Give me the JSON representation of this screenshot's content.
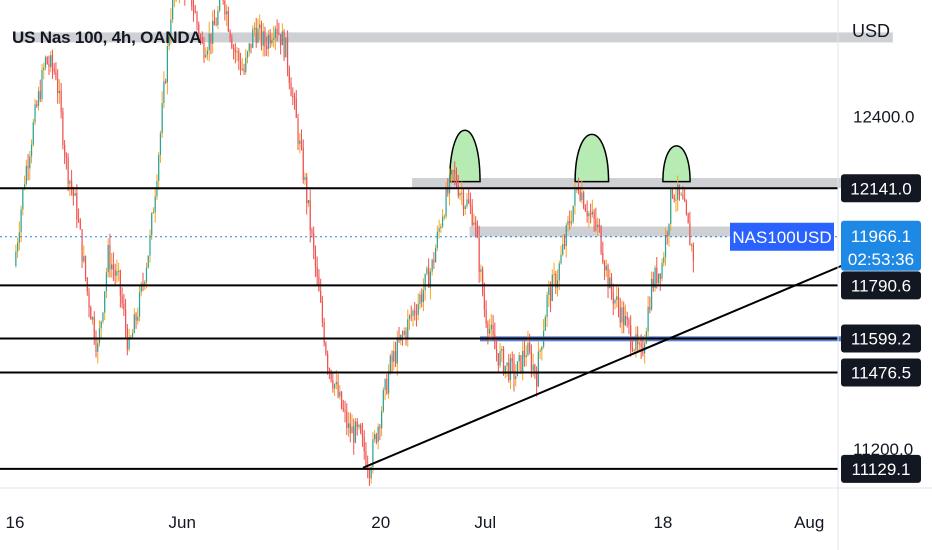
{
  "header": {
    "title": "US Nas 100, 4h, OANDA",
    "currency": "USD"
  },
  "colors": {
    "up": "#26a69a",
    "down": "#ef5350",
    "wick_up": "#f5a623",
    "level_line": "#000000",
    "zone": "#cfd0d4",
    "blue_zone": "#3f6cc8",
    "hump_fill": "#b6ecb4",
    "symbol_tag": "#2962ff",
    "price_tag": "#1e88e5"
  },
  "symbol_tag": {
    "label": "NAS100USD",
    "price": "11966.1",
    "countdown": "02:53:36"
  },
  "chart_data": {
    "type": "candlestick",
    "title": "US Nas 100, 4h, OANDA",
    "ylim": [
      11060,
      12820
    ],
    "y_tick_labels": [
      {
        "value": 12400,
        "label": "12400.0"
      },
      {
        "value": 11200,
        "label": "11200.0"
      }
    ],
    "x_tick_labels": [
      {
        "label": "16",
        "day": 0
      },
      {
        "label": "Jun",
        "day": 16
      },
      {
        "label": "20",
        "day": 35
      },
      {
        "label": "Jul",
        "day": 45
      },
      {
        "label": "18",
        "day": 62
      },
      {
        "label": "Aug",
        "day": 76
      }
    ],
    "levels": [
      {
        "value": 12141.0,
        "label": "12141.0"
      },
      {
        "value": 11790.6,
        "label": "11790.6"
      },
      {
        "value": 11599.2,
        "label": "11599.2"
      },
      {
        "value": 11476.5,
        "label": "11476.5"
      },
      {
        "value": 11129.1,
        "label": "11129.1"
      }
    ],
    "zones": [
      {
        "kind": "grey",
        "from_day": 0,
        "to_day": 84,
        "value": 12685
      },
      {
        "kind": "grey",
        "from_day": 38,
        "to_day": 81.5,
        "value": 12160
      },
      {
        "kind": "grey",
        "from_day": 43.5,
        "to_day": 73.5,
        "value": 11985
      },
      {
        "kind": "blue",
        "from_day": 44.5,
        "to_day": 79.5,
        "value": 11598
      }
    ],
    "humps": [
      {
        "day_start": 41.6,
        "day_end": 44.5,
        "peak": 12340,
        "base": 12165
      },
      {
        "day_start": 53.6,
        "day_end": 56.8,
        "peak": 12320,
        "base": 12165
      },
      {
        "day_start": 62.0,
        "day_end": 64.6,
        "peak": 12265,
        "base": 12165
      }
    ],
    "trendline": {
      "start": {
        "day": 33.3,
        "value": 11133
      },
      "end": {
        "day": 80.9,
        "value": 11890
      }
    },
    "last_price": 11966.1,
    "candles_high_low_path": [
      [
        0,
        11860
      ],
      [
        1,
        12180
      ],
      [
        2,
        12400
      ],
      [
        3,
        12600
      ],
      [
        4,
        12560
      ],
      [
        5,
        12230
      ],
      [
        6,
        12060
      ],
      [
        7,
        11770
      ],
      [
        8,
        11560
      ],
      [
        9,
        11900
      ],
      [
        10,
        11800
      ],
      [
        11,
        11560
      ],
      [
        12,
        11730
      ],
      [
        13,
        11950
      ],
      [
        14,
        12340
      ],
      [
        15,
        12780
      ],
      [
        16,
        12900
      ],
      [
        17,
        12820
      ],
      [
        18,
        12650
      ],
      [
        19,
        12700
      ],
      [
        20,
        12840
      ],
      [
        21,
        12650
      ],
      [
        22,
        12560
      ],
      [
        23,
        12720
      ],
      [
        24,
        12660
      ],
      [
        25,
        12740
      ],
      [
        26,
        12640
      ],
      [
        27,
        12380
      ],
      [
        28,
        12110
      ],
      [
        29,
        11800
      ],
      [
        30,
        11520
      ],
      [
        31,
        11390
      ],
      [
        32,
        11270
      ],
      [
        33,
        11250
      ],
      [
        34,
        11140
      ],
      [
        35,
        11320
      ],
      [
        36,
        11500
      ],
      [
        37,
        11590
      ],
      [
        38,
        11680
      ],
      [
        39,
        11760
      ],
      [
        40,
        11860
      ],
      [
        41,
        12060
      ],
      [
        42,
        12190
      ],
      [
        43,
        12110
      ],
      [
        44,
        12040
      ],
      [
        45,
        11710
      ],
      [
        46,
        11560
      ],
      [
        47,
        11500
      ],
      [
        48,
        11470
      ],
      [
        49,
        11560
      ],
      [
        50,
        11470
      ],
      [
        51,
        11740
      ],
      [
        52,
        11830
      ],
      [
        53,
        12000
      ],
      [
        54,
        12160
      ],
      [
        55,
        12050
      ],
      [
        56,
        11980
      ],
      [
        57,
        11780
      ],
      [
        58,
        11700
      ],
      [
        59,
        11610
      ],
      [
        60,
        11530
      ],
      [
        61,
        11790
      ],
      [
        62,
        11870
      ],
      [
        63,
        12140
      ],
      [
        64,
        12080
      ],
      [
        65,
        11900
      ]
    ]
  }
}
